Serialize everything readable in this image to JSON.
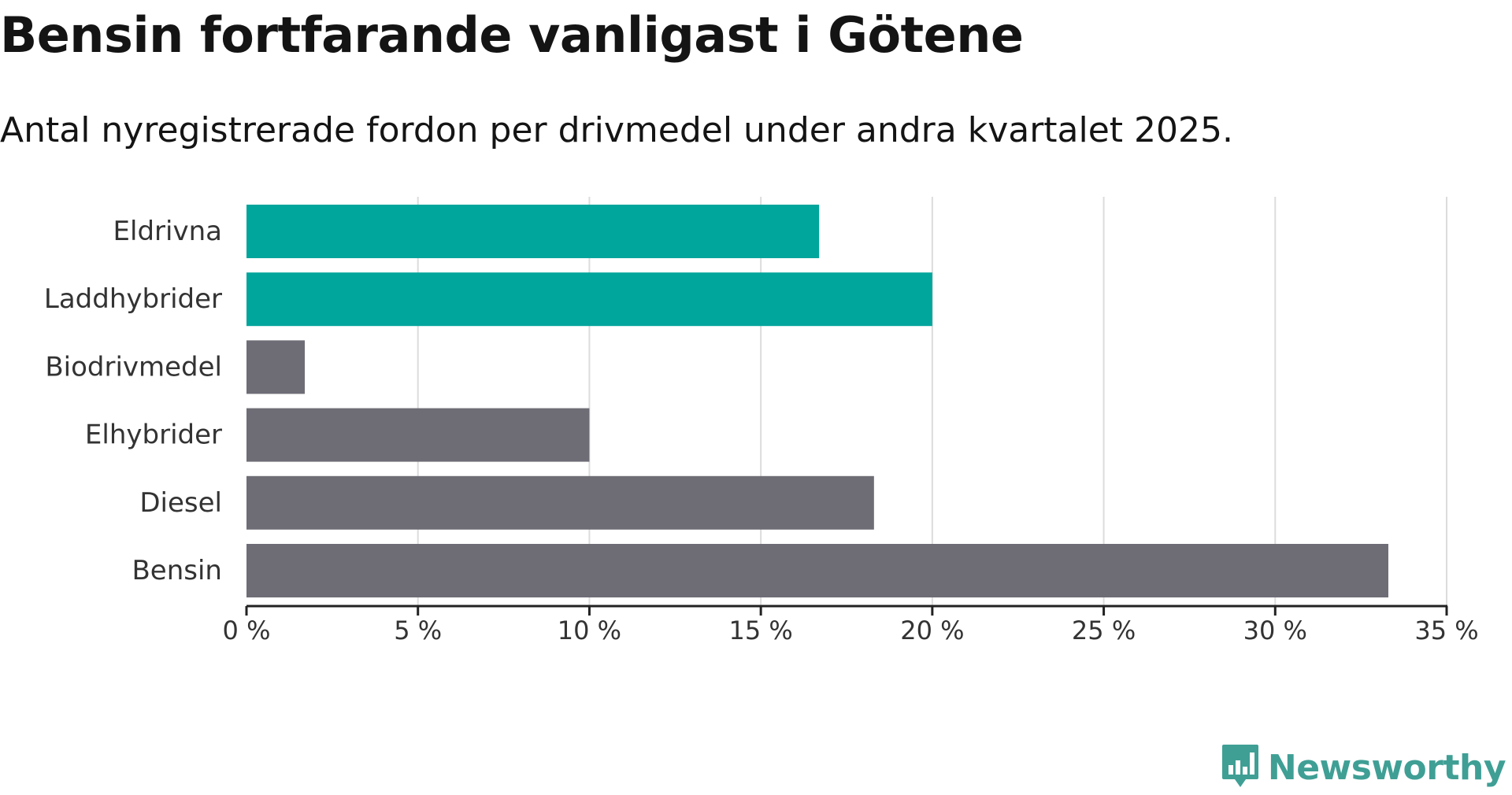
{
  "title": "Bensin fortfarande vanligast i Götene",
  "subtitle": "Antal nyregistrerade fordon per drivmedel under andra kvartalet 2025.",
  "brand": {
    "name": "Newsworthy",
    "icon": "newsworthy-logo-icon",
    "color": "#3f9f95"
  },
  "colors": {
    "highlight": "#00a59b",
    "default": "#6e6d76",
    "grid": "#dcdcdc",
    "axis": "#222222",
    "text": "#333333"
  },
  "chart_data": {
    "type": "bar",
    "orientation": "horizontal",
    "categories": [
      "Eldrivna",
      "Laddhybrider",
      "Biodrivmedel",
      "Elhybrider",
      "Diesel",
      "Bensin"
    ],
    "values": [
      16.7,
      20.0,
      1.7,
      10.0,
      18.3,
      33.3
    ],
    "highlighted": [
      true,
      true,
      false,
      false,
      false,
      false
    ],
    "unit": "%",
    "xlim": [
      0,
      35
    ],
    "xticks": [
      0,
      5,
      10,
      15,
      20,
      25,
      30,
      35
    ],
    "xtick_labels": [
      "0 %",
      "5 %",
      "10 %",
      "15 %",
      "20 %",
      "25 %",
      "30 %",
      "35 %"
    ],
    "grid": "vertical",
    "legend": "none",
    "title": "Bensin fortfarande vanligast i Götene",
    "subtitle": "Antal nyregistrerade fordon per drivmedel under andra kvartalet 2025."
  }
}
